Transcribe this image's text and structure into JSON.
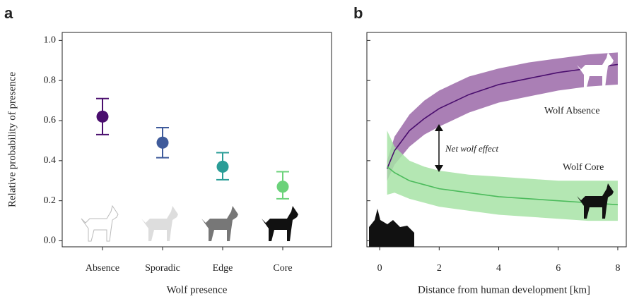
{
  "chart_data": [
    {
      "type": "errorbar",
      "panel_label": "a",
      "xlabel": "Wolf presence",
      "ylabel": "Relative probability of presence",
      "categories": [
        "Absence",
        "Sporadic",
        "Edge",
        "Core"
      ],
      "values": [
        0.62,
        0.49,
        0.37,
        0.27
      ],
      "lower": [
        0.53,
        0.415,
        0.305,
        0.21
      ],
      "upper": [
        0.71,
        0.565,
        0.44,
        0.345
      ],
      "colors": [
        "#4a0e6e",
        "#3f5b9b",
        "#2a9d97",
        "#6bd27a"
      ],
      "ylim": [
        -0.03,
        1.04
      ],
      "yticks": [
        {
          "value": 0,
          "label": "0.0"
        },
        0.2,
        0.4,
        0.6,
        0.8,
        {
          "value": 1,
          "label": "1.0"
        }
      ]
    },
    {
      "type": "band",
      "panel_label": "b",
      "xlabel": "Distance from human development [km]",
      "x": [
        0.25,
        0.5,
        1,
        1.5,
        2,
        3,
        4,
        5,
        6,
        7,
        8
      ],
      "series": [
        {
          "name": "Wolf Absence",
          "color": "#4a0e6e",
          "fill": "#9b69a8",
          "values": [
            0.36,
            0.45,
            0.55,
            0.61,
            0.66,
            0.73,
            0.78,
            0.81,
            0.84,
            0.86,
            0.88
          ],
          "upper": [
            0.4,
            0.52,
            0.63,
            0.7,
            0.75,
            0.82,
            0.86,
            0.89,
            0.91,
            0.93,
            0.94
          ],
          "lower": [
            0.3,
            0.38,
            0.47,
            0.53,
            0.57,
            0.64,
            0.69,
            0.72,
            0.75,
            0.77,
            0.78
          ]
        },
        {
          "name": "Wolf Core",
          "color": "#4cbb5c",
          "fill": "#a7e3a6",
          "values": [
            0.37,
            0.34,
            0.3,
            0.28,
            0.26,
            0.24,
            0.22,
            0.21,
            0.2,
            0.19,
            0.18
          ],
          "upper": [
            0.55,
            0.47,
            0.4,
            0.37,
            0.35,
            0.33,
            0.32,
            0.31,
            0.3,
            0.3,
            0.3
          ],
          "lower": [
            0.23,
            0.24,
            0.21,
            0.19,
            0.17,
            0.15,
            0.13,
            0.12,
            0.11,
            0.1,
            0.1
          ]
        }
      ],
      "annotation": "Net wolf effect",
      "xlim": [
        -0.43,
        8.31
      ],
      "xticks": [
        0,
        2,
        4,
        6,
        8
      ],
      "ylim": [
        -0.03,
        1.04
      ],
      "yticks": [
        0,
        0.2,
        0.4,
        0.6,
        0.8,
        1
      ]
    }
  ]
}
